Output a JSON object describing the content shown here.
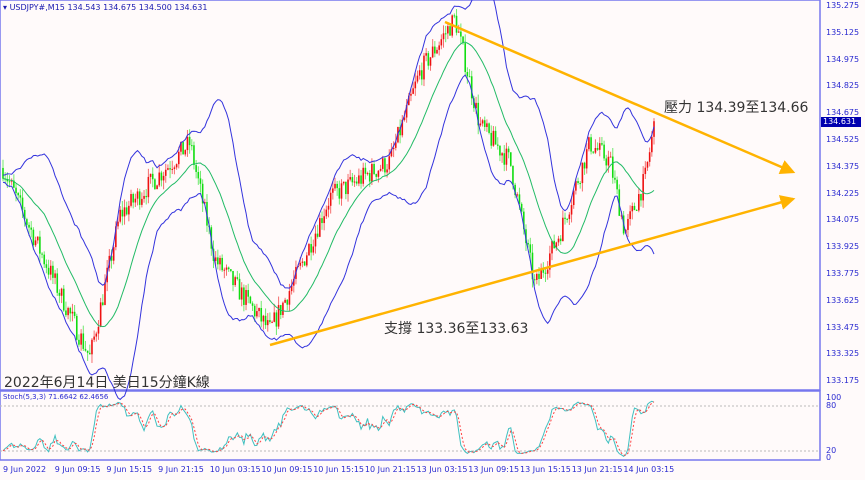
{
  "header": {
    "symbol": "USDJPY#,M15",
    "open": "134.543",
    "high": "134.675",
    "low": "134.500",
    "close": "134.631"
  },
  "annotations": {
    "resistance": "壓力 134.39至134.66",
    "support": "支撐 133.36至133.63",
    "caption": "2022年6月14日 美日15分鐘K線"
  },
  "price_axis": [
    "135.275",
    "135.125",
    "134.975",
    "134.825",
    "134.675",
    "134.525",
    "134.375",
    "134.225",
    "134.075",
    "133.925",
    "133.775",
    "133.625",
    "133.475",
    "133.325",
    "133.175"
  ],
  "current_price": "134.631",
  "stoch": {
    "label": "Stoch(5,3,3) 71.6642 62.4656",
    "levels": [
      "100",
      "80",
      "20",
      "0"
    ]
  },
  "time_axis": [
    "9 Jun 2022",
    "9 Jun 09:15",
    "9 Jun 15:15",
    "9 Jun 21:15",
    "10 Jun 03:15",
    "10 Jun 09:15",
    "10 Jun 15:15",
    "10 Jun 21:15",
    "13 Jun 03:15",
    "13 Jun 09:15",
    "13 Jun 15:15",
    "13 Jun 21:15",
    "14 Jun 03:15"
  ],
  "colors": {
    "up": "#ee1111",
    "down": "#11dd11",
    "bands": "#3333dd",
    "trendline": "#ffb300",
    "stoch_main": "#40c0c0",
    "stoch_signal": "#ff4040"
  },
  "chart_data": {
    "type": "candlestick",
    "approx_close_path": [
      [
        0,
        134.4
      ],
      [
        40,
        133.9
      ],
      [
        90,
        133.3
      ],
      [
        120,
        134.1
      ],
      [
        190,
        134.5
      ],
      [
        215,
        133.85
      ],
      [
        270,
        133.45
      ],
      [
        300,
        133.8
      ],
      [
        330,
        134.2
      ],
      [
        390,
        134.4
      ],
      [
        420,
        134.9
      ],
      [
        455,
        135.2
      ],
      [
        480,
        134.6
      ],
      [
        510,
        134.4
      ],
      [
        535,
        133.7
      ],
      [
        560,
        134.0
      ],
      [
        590,
        134.5
      ],
      [
        610,
        134.4
      ],
      [
        625,
        134.0
      ],
      [
        645,
        134.3
      ],
      [
        655,
        134.63
      ]
    ],
    "ylim": [
      133.175,
      135.275
    ]
  }
}
